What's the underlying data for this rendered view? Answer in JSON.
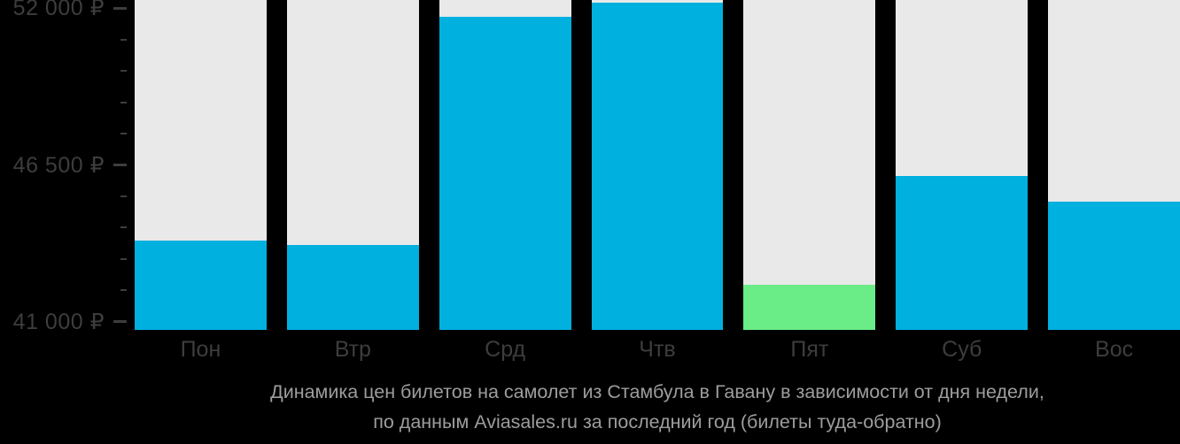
{
  "chart_data": {
    "type": "bar",
    "title": "Динамика цен билетов на самолет из Стамбула в Гавану в зависимости от дня недели, по данным Aviasales.ru за последний год (билеты туда-обратно)",
    "caption_lines": [
      "Динамика цен билетов на самолет из Стамбула в Гавану в зависимости от дня недели,",
      "по данным Aviasales.ru за последний год (билеты туда-обратно)"
    ],
    "categories": [
      "Пон",
      "Втр",
      "Срд",
      "Чтв",
      "Пят",
      "Суб",
      "Вос"
    ],
    "values": [
      43850,
      43700,
      51700,
      52200,
      42300,
      46100,
      45200
    ],
    "currency": "₽",
    "highlight_index": 4,
    "y_axis": {
      "tick_labels": [
        "52 000 ₽",
        "46 500 ₽",
        "41 000 ₽"
      ],
      "tick_values": [
        52000,
        46500,
        41000
      ],
      "minor_step": 1100,
      "range_min": 40720,
      "range_max": 52280
    },
    "layout_hints": {
      "grid": false,
      "legend": "none",
      "bar_tracks_full_height": true
    },
    "colors": {
      "bar": "#00B0DF",
      "highlight": "#6AEC87",
      "track": "#E9E9E9",
      "background": "#000000",
      "axis_text": "#3D3D3D",
      "caption_text": "#9D9D9D"
    }
  }
}
